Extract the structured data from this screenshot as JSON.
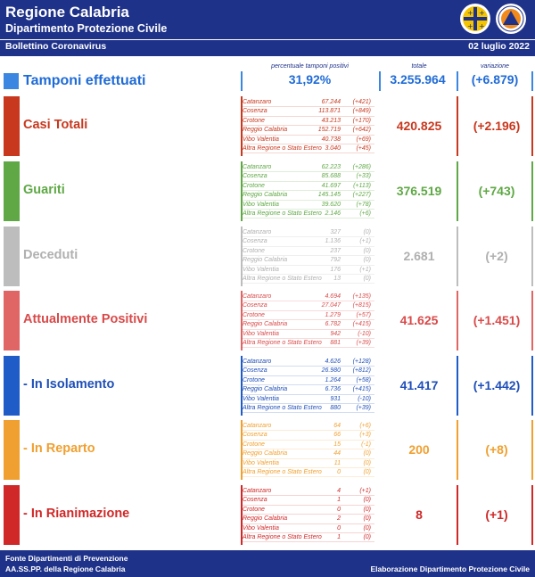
{
  "header": {
    "title": "Regione Calabria",
    "subtitle": "Dipartimento Protezione Civile"
  },
  "stripe": {
    "left": "Bollettino Coronavirus",
    "date": "02 luglio 2022"
  },
  "columns": {
    "pct": "percentuale tamponi positivi",
    "total": "totale",
    "variation": "variazione"
  },
  "tamponi": {
    "label": "Tamponi effettuati",
    "pct": "31,92%",
    "total": "3.255.964",
    "variation": "(+6.879)",
    "color": "#1f6bd6"
  },
  "sections": [
    {
      "label": "Casi Totali",
      "color": "#c8381e",
      "bar": "#c8381e",
      "total": "420.825",
      "variation": "(+2.196)",
      "rows": [
        [
          "Catanzaro",
          "67.244",
          "(+421)"
        ],
        [
          "Cosenza",
          "113.871",
          "(+849)"
        ],
        [
          "Crotone",
          "43.213",
          "(+170)"
        ],
        [
          "Reggio Calabria",
          "152.719",
          "(+642)"
        ],
        [
          "Vibo Valentia",
          "40.738",
          "(+69)"
        ],
        [
          "Altra Regione o Stato Estero",
          "3.040",
          "(+45)"
        ]
      ]
    },
    {
      "label": "Guariti",
      "color": "#5fa845",
      "bar": "#5fa845",
      "total": "376.519",
      "variation": "(+743)",
      "rows": [
        [
          "Catanzaro",
          "62.223",
          "(+286)"
        ],
        [
          "Cosenza",
          "85.688",
          "(+33)"
        ],
        [
          "Crotone",
          "41.697",
          "(+113)"
        ],
        [
          "Reggio Calabria",
          "145.145",
          "(+227)"
        ],
        [
          "Vibo Valentia",
          "39.620",
          "(+78)"
        ],
        [
          "Altra Regione o Stato Estero",
          "2.146",
          "(+6)"
        ]
      ]
    },
    {
      "label": "Deceduti",
      "color": "#b0b0b0",
      "bar": "#bdbdbd",
      "total": "2.681",
      "variation": "(+2)",
      "rows": [
        [
          "Catanzaro",
          "327",
          "(0)"
        ],
        [
          "Cosenza",
          "1.136",
          "(+1)"
        ],
        [
          "Crotone",
          "237",
          "(0)"
        ],
        [
          "Reggio Calabria",
          "792",
          "(0)"
        ],
        [
          "Vibo Valentia",
          "176",
          "(+1)"
        ],
        [
          "Altra Regione o Stato Estero",
          "13",
          "(0)"
        ]
      ]
    },
    {
      "label": "Attualmente Positivi",
      "color": "#d94a4a",
      "bar": "#e06666",
      "total": "41.625",
      "variation": "(+1.451)",
      "rows": [
        [
          "Catanzaro",
          "4.694",
          "(+135)"
        ],
        [
          "Cosenza",
          "27.047",
          "(+815)"
        ],
        [
          "Crotone",
          "1.279",
          "(+57)"
        ],
        [
          "Reggio Calabria",
          "6.782",
          "(+415)"
        ],
        [
          "Vibo Valentia",
          "942",
          "(-10)"
        ],
        [
          "Altra Regione o Stato Estero",
          "881",
          "(+39)"
        ]
      ]
    },
    {
      "label": "- In Isolamento",
      "color": "#1f4fb8",
      "bar": "#1f5cc8",
      "total": "41.417",
      "variation": "(+1.442)",
      "rows": [
        [
          "Catanzaro",
          "4.626",
          "(+128)"
        ],
        [
          "Cosenza",
          "26.980",
          "(+812)"
        ],
        [
          "Crotone",
          "1.264",
          "(+58)"
        ],
        [
          "Reggio Calabria",
          "6.736",
          "(+415)"
        ],
        [
          "Vibo Valentia",
          "931",
          "(-10)"
        ],
        [
          "Altra Regione o Stato Estero",
          "880",
          "(+39)"
        ]
      ]
    },
    {
      "label": "- In Reparto",
      "color": "#f0a030",
      "bar": "#f0a030",
      "total": "200",
      "variation": "(+8)",
      "rows": [
        [
          "Catanzaro",
          "64",
          "(+6)"
        ],
        [
          "Cosenza",
          "66",
          "(+3)"
        ],
        [
          "Crotone",
          "15",
          "(-1)"
        ],
        [
          "Reggio Calabria",
          "44",
          "(0)"
        ],
        [
          "Vibo Valentia",
          "11",
          "(0)"
        ],
        [
          "Altra Regione o Stato Estero",
          "0",
          "(0)"
        ]
      ]
    },
    {
      "label": "- In Rianimazione",
      "color": "#d02828",
      "bar": "#d02828",
      "total": "8",
      "variation": "(+1)",
      "rows": [
        [
          "Catanzaro",
          "4",
          "(+1)"
        ],
        [
          "Cosenza",
          "1",
          "(0)"
        ],
        [
          "Crotone",
          "0",
          "(0)"
        ],
        [
          "Reggio Calabria",
          "2",
          "(0)"
        ],
        [
          "Vibo Valentia",
          "0",
          "(0)"
        ],
        [
          "Altra Regione o Stato Estero",
          "1",
          "(0)"
        ]
      ]
    }
  ],
  "footer": {
    "line1": "Fonte Dipartimenti di Prevenzione",
    "line2": "AA.SS.PP.  della Regione Calabria",
    "right": "Elaborazione Dipartimento Protezione Civile"
  }
}
